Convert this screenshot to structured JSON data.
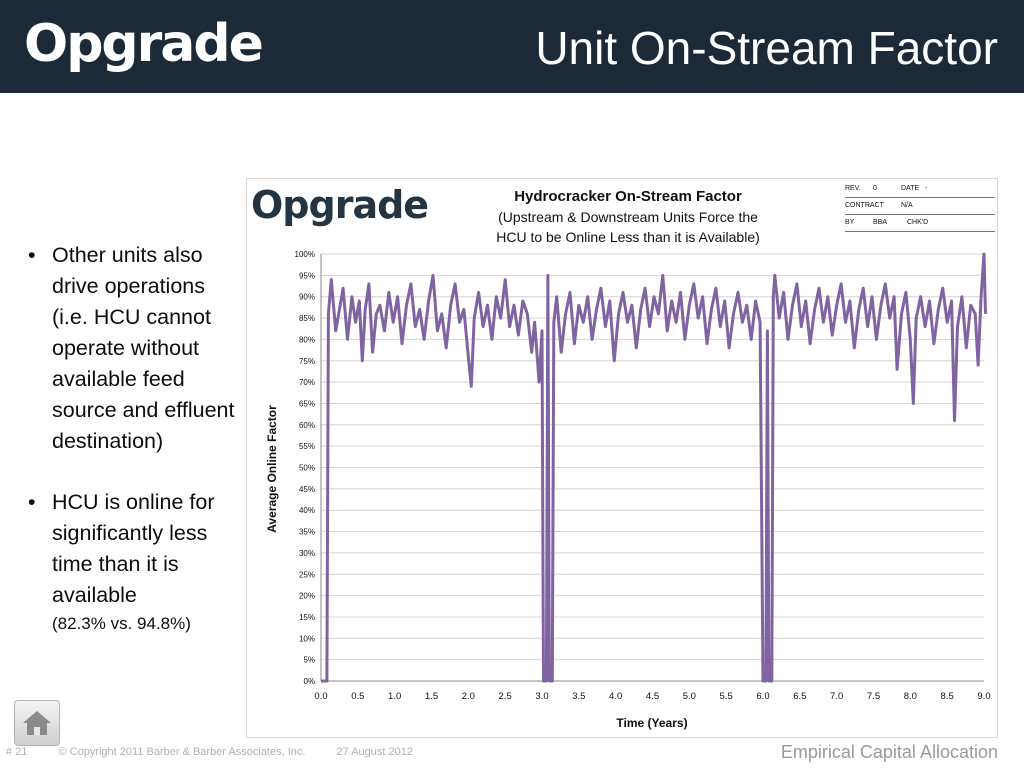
{
  "header": {
    "logo_text": "Opgrade",
    "title": "Unit On-Stream Factor",
    "background_color": "#1b2a36"
  },
  "bullets": [
    {
      "text": "Other units also drive operations (i.e. HCU cannot operate without available feed source and effluent destination)"
    },
    {
      "text": "HCU is online for significantly less time than it is available",
      "note": "(82.3% vs. 94.8%)"
    }
  ],
  "chart_header": {
    "logo_text": "Opgrade",
    "title_line1": "Hydrocracker On-Stream Factor",
    "title_line2": "(Upstream & Downstream  Units Force the",
    "title_line3": "HCU to be Online Less than it is Available)",
    "info": {
      "rev_label": "REV.",
      "rev_value": "0",
      "date_label": "DATE",
      "date_value": "-",
      "contract_label": "CONTRACT",
      "contract_value": "N/A",
      "by_label": "BY",
      "by_value": "BBA",
      "chkd_label": "CHK'D"
    }
  },
  "chart_data": {
    "type": "line",
    "title": "",
    "xlabel": "Time (Years)",
    "ylabel": "Average Online Factor",
    "xlim": [
      0,
      9
    ],
    "ylim": [
      0,
      1
    ],
    "x_ticks": [
      "0.0",
      "0.5",
      "1.0",
      "1.5",
      "2.0",
      "2.5",
      "3.0",
      "3.5",
      "4.0",
      "4.5",
      "5.0",
      "5.5",
      "6.0",
      "6.5",
      "7.0",
      "7.5",
      "8.0",
      "8.5",
      "9.0"
    ],
    "y_ticks": [
      "0%",
      "5%",
      "10%",
      "15%",
      "20%",
      "25%",
      "30%",
      "35%",
      "40%",
      "45%",
      "50%",
      "55%",
      "60%",
      "65%",
      "70%",
      "75%",
      "80%",
      "85%",
      "90%",
      "95%",
      "100%"
    ],
    "grid": true,
    "line_color": "#8064a2",
    "series": [
      {
        "values": [
          [
            0.0,
            0.0
          ],
          [
            0.08,
            0.0
          ],
          [
            0.1,
            0.86
          ],
          [
            0.14,
            0.94
          ],
          [
            0.2,
            0.82
          ],
          [
            0.26,
            0.88
          ],
          [
            0.3,
            0.92
          ],
          [
            0.36,
            0.8
          ],
          [
            0.42,
            0.9
          ],
          [
            0.47,
            0.84
          ],
          [
            0.52,
            0.89
          ],
          [
            0.56,
            0.75
          ],
          [
            0.6,
            0.87
          ],
          [
            0.65,
            0.93
          ],
          [
            0.7,
            0.77
          ],
          [
            0.75,
            0.86
          ],
          [
            0.8,
            0.88
          ],
          [
            0.86,
            0.82
          ],
          [
            0.92,
            0.91
          ],
          [
            0.98,
            0.84
          ],
          [
            1.04,
            0.9
          ],
          [
            1.1,
            0.79
          ],
          [
            1.16,
            0.88
          ],
          [
            1.22,
            0.93
          ],
          [
            1.28,
            0.83
          ],
          [
            1.34,
            0.87
          ],
          [
            1.4,
            0.8
          ],
          [
            1.46,
            0.89
          ],
          [
            1.52,
            0.95
          ],
          [
            1.58,
            0.82
          ],
          [
            1.64,
            0.86
          ],
          [
            1.7,
            0.78
          ],
          [
            1.76,
            0.88
          ],
          [
            1.82,
            0.93
          ],
          [
            1.88,
            0.84
          ],
          [
            1.94,
            0.87
          ],
          [
            2.0,
            0.76
          ],
          [
            2.04,
            0.69
          ],
          [
            2.08,
            0.85
          ],
          [
            2.14,
            0.91
          ],
          [
            2.2,
            0.83
          ],
          [
            2.26,
            0.88
          ],
          [
            2.32,
            0.8
          ],
          [
            2.38,
            0.9
          ],
          [
            2.44,
            0.85
          ],
          [
            2.5,
            0.94
          ],
          [
            2.56,
            0.83
          ],
          [
            2.62,
            0.88
          ],
          [
            2.68,
            0.81
          ],
          [
            2.74,
            0.89
          ],
          [
            2.8,
            0.86
          ],
          [
            2.86,
            0.77
          ],
          [
            2.9,
            0.84
          ],
          [
            2.96,
            0.7
          ],
          [
            3.0,
            0.82
          ],
          [
            3.02,
            0.0
          ],
          [
            3.06,
            0.0
          ],
          [
            3.08,
            0.95
          ],
          [
            3.1,
            0.0
          ],
          [
            3.14,
            0.0
          ],
          [
            3.16,
            0.84
          ],
          [
            3.2,
            0.9
          ],
          [
            3.26,
            0.77
          ],
          [
            3.32,
            0.86
          ],
          [
            3.38,
            0.91
          ],
          [
            3.44,
            0.79
          ],
          [
            3.5,
            0.88
          ],
          [
            3.56,
            0.84
          ],
          [
            3.62,
            0.9
          ],
          [
            3.68,
            0.8
          ],
          [
            3.74,
            0.87
          ],
          [
            3.8,
            0.92
          ],
          [
            3.86,
            0.83
          ],
          [
            3.92,
            0.89
          ],
          [
            3.98,
            0.75
          ],
          [
            4.04,
            0.86
          ],
          [
            4.1,
            0.91
          ],
          [
            4.16,
            0.84
          ],
          [
            4.22,
            0.88
          ],
          [
            4.28,
            0.78
          ],
          [
            4.34,
            0.87
          ],
          [
            4.4,
            0.92
          ],
          [
            4.46,
            0.83
          ],
          [
            4.52,
            0.9
          ],
          [
            4.58,
            0.86
          ],
          [
            4.64,
            0.95
          ],
          [
            4.7,
            0.82
          ],
          [
            4.76,
            0.89
          ],
          [
            4.82,
            0.84
          ],
          [
            4.88,
            0.91
          ],
          [
            4.94,
            0.8
          ],
          [
            5.0,
            0.88
          ],
          [
            5.06,
            0.93
          ],
          [
            5.12,
            0.85
          ],
          [
            5.18,
            0.9
          ],
          [
            5.24,
            0.79
          ],
          [
            5.3,
            0.87
          ],
          [
            5.36,
            0.92
          ],
          [
            5.42,
            0.83
          ],
          [
            5.48,
            0.89
          ],
          [
            5.54,
            0.78
          ],
          [
            5.6,
            0.86
          ],
          [
            5.66,
            0.91
          ],
          [
            5.72,
            0.84
          ],
          [
            5.78,
            0.88
          ],
          [
            5.84,
            0.8
          ],
          [
            5.9,
            0.89
          ],
          [
            5.96,
            0.84
          ],
          [
            6.0,
            0.0
          ],
          [
            6.04,
            0.0
          ],
          [
            6.06,
            0.82
          ],
          [
            6.08,
            0.0
          ],
          [
            6.12,
            0.0
          ],
          [
            6.14,
            0.9
          ],
          [
            6.16,
            0.95
          ],
          [
            6.22,
            0.85
          ],
          [
            6.28,
            0.91
          ],
          [
            6.34,
            0.8
          ],
          [
            6.4,
            0.88
          ],
          [
            6.46,
            0.93
          ],
          [
            6.52,
            0.83
          ],
          [
            6.58,
            0.89
          ],
          [
            6.64,
            0.79
          ],
          [
            6.7,
            0.87
          ],
          [
            6.76,
            0.92
          ],
          [
            6.82,
            0.84
          ],
          [
            6.88,
            0.9
          ],
          [
            6.94,
            0.81
          ],
          [
            7.0,
            0.88
          ],
          [
            7.06,
            0.93
          ],
          [
            7.12,
            0.84
          ],
          [
            7.18,
            0.89
          ],
          [
            7.24,
            0.78
          ],
          [
            7.3,
            0.87
          ],
          [
            7.36,
            0.92
          ],
          [
            7.42,
            0.83
          ],
          [
            7.48,
            0.9
          ],
          [
            7.54,
            0.8
          ],
          [
            7.6,
            0.88
          ],
          [
            7.66,
            0.93
          ],
          [
            7.72,
            0.85
          ],
          [
            7.78,
            0.9
          ],
          [
            7.82,
            0.73
          ],
          [
            7.88,
            0.86
          ],
          [
            7.94,
            0.91
          ],
          [
            8.0,
            0.8
          ],
          [
            8.04,
            0.65
          ],
          [
            8.08,
            0.85
          ],
          [
            8.14,
            0.9
          ],
          [
            8.2,
            0.83
          ],
          [
            8.26,
            0.89
          ],
          [
            8.32,
            0.79
          ],
          [
            8.38,
            0.87
          ],
          [
            8.44,
            0.92
          ],
          [
            8.5,
            0.84
          ],
          [
            8.56,
            0.89
          ],
          [
            8.6,
            0.61
          ],
          [
            8.64,
            0.83
          ],
          [
            8.7,
            0.9
          ],
          [
            8.76,
            0.78
          ],
          [
            8.82,
            0.88
          ],
          [
            8.88,
            0.86
          ],
          [
            8.92,
            0.74
          ],
          [
            8.96,
            0.9
          ],
          [
            9.0,
            1.0
          ],
          [
            9.02,
            0.86
          ]
        ]
      }
    ]
  },
  "footer": {
    "slide_number": "# 21",
    "copyright": "© Copyright 2011 Barber & Barber Associates, Inc.",
    "date": "27 August 2012",
    "right_text": "Empirical Capital Allocation"
  },
  "icons": {
    "home": "home-icon"
  }
}
